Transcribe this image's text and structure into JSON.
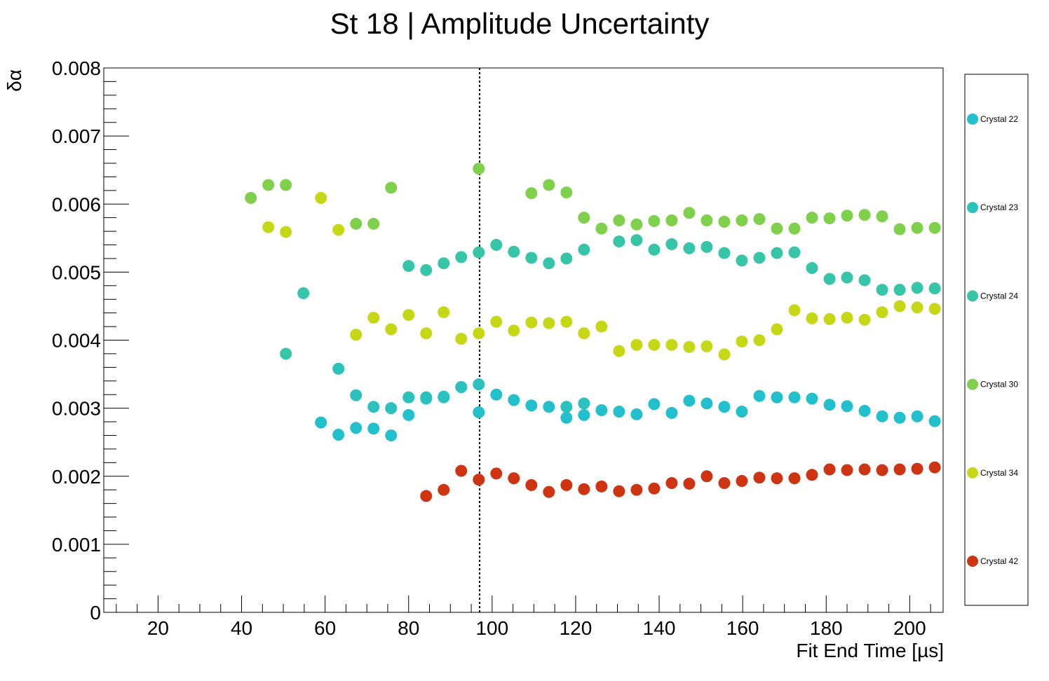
{
  "chart_data": {
    "type": "scatter",
    "title": "St 18 | Amplitude Uncertainty",
    "xlabel": "Fit End Time [µs]",
    "ylabel": "δα",
    "xlim": [
      7,
      208
    ],
    "ylim": [
      0,
      0.008
    ],
    "x_ticks": [
      "20",
      "40",
      "60",
      "80",
      "100",
      "120",
      "140",
      "160",
      "180",
      "200"
    ],
    "y_ticks": [
      "0",
      "0.001",
      "0.002",
      "0.003",
      "0.004",
      "0.005",
      "0.006",
      "0.007",
      "0.008"
    ],
    "grid": false,
    "legend_position": "right",
    "reference_line_x": 97,
    "series": [
      {
        "name": "Crystal 22",
        "color": "#22bfcc",
        "x": [
          59,
          63.2,
          67.4,
          71.6,
          75.8,
          80,
          84.2,
          88.4,
          92.6,
          96.8,
          101,
          105.2,
          109.4,
          113.6,
          117.8,
          122,
          126.2,
          130.4,
          134.6,
          138.8,
          143,
          147.2,
          151.4,
          155.6,
          159.8,
          164,
          168.2,
          172.4,
          176.6,
          180.8,
          185,
          189.2,
          193.4,
          197.6,
          201.8,
          206
        ],
        "y": [
          0.00279,
          0.00261,
          0.00271,
          0.0027,
          0.0026,
          0.0029,
          0.00316,
          0.00317,
          0.00331,
          0.00294,
          0.0032,
          0.00312,
          0.00304,
          0.00302,
          0.00286,
          0.0029,
          0.00297,
          0.00295,
          0.00291,
          0.00306,
          0.00293,
          0.00311,
          0.00307,
          0.00302,
          0.00295,
          0.00318,
          0.00316,
          0.00316,
          0.00314,
          0.00305,
          0.00303,
          0.00296,
          0.00288,
          0.00286,
          0.00288,
          0.00281
        ]
      },
      {
        "name": "Crystal 23",
        "color": "#2bc1bd",
        "x": [
          63.2,
          67.4,
          71.6,
          75.8,
          80,
          84.2,
          88.4,
          92.6,
          96.8,
          117.8,
          122
        ],
        "y": [
          0.00358,
          0.00319,
          0.00302,
          0.003,
          0.00316,
          0.00314,
          0.00316,
          0.00331,
          0.00335,
          0.00302,
          0.00307
        ]
      },
      {
        "name": "Crystal 24",
        "color": "#37c5a7",
        "x": [
          50.6,
          54.8,
          80,
          84.2,
          88.4,
          92.6,
          96.8,
          101,
          105.2,
          109.4,
          113.6,
          117.8,
          122,
          130.4,
          134.6,
          138.8,
          143,
          147.2,
          151.4,
          155.6,
          159.8,
          164,
          168.2,
          172.4,
          176.6,
          180.8,
          185,
          189.2,
          193.4,
          197.6,
          201.8,
          206
        ],
        "y": [
          0.0038,
          0.00469,
          0.00509,
          0.00503,
          0.00513,
          0.00522,
          0.00529,
          0.0054,
          0.0053,
          0.00521,
          0.00513,
          0.0052,
          0.00533,
          0.00545,
          0.00547,
          0.00533,
          0.00541,
          0.00535,
          0.00537,
          0.00528,
          0.00517,
          0.00521,
          0.00528,
          0.00529,
          0.00506,
          0.0049,
          0.00492,
          0.00488,
          0.00474,
          0.00474,
          0.00477,
          0.00476
        ]
      },
      {
        "name": "Crystal 30",
        "color": "#7fd04a",
        "x": [
          42.2,
          46.4,
          50.6,
          67.4,
          71.6,
          75.8,
          96.8,
          109.4,
          113.6,
          117.8,
          122,
          126.2,
          130.4,
          134.6,
          138.8,
          143,
          147.2,
          151.4,
          155.6,
          159.8,
          164,
          168.2,
          172.4,
          176.6,
          180.8,
          185,
          189.2,
          193.4,
          197.6,
          201.8,
          206
        ],
        "y": [
          0.00609,
          0.00628,
          0.00628,
          0.00571,
          0.00571,
          0.00624,
          0.00652,
          0.00616,
          0.00628,
          0.00617,
          0.0058,
          0.00564,
          0.00576,
          0.0057,
          0.00575,
          0.00576,
          0.00587,
          0.00576,
          0.00574,
          0.00576,
          0.00578,
          0.00564,
          0.00564,
          0.0058,
          0.00579,
          0.00583,
          0.00584,
          0.00582,
          0.00563,
          0.00565,
          0.00565
        ]
      },
      {
        "name": "Crystal 34",
        "color": "#c6d815",
        "x": [
          46.4,
          50.6,
          59,
          63.2,
          67.4,
          71.6,
          75.8,
          80,
          84.2,
          88.4,
          92.6,
          96.8,
          101,
          105.2,
          109.4,
          113.6,
          117.8,
          122,
          126.2,
          130.4,
          134.6,
          138.8,
          143,
          147.2,
          151.4,
          155.6,
          159.8,
          164,
          168.2,
          172.4,
          176.6,
          180.8,
          185,
          189.2,
          193.4,
          197.6,
          201.8,
          206
        ],
        "y": [
          0.00566,
          0.00559,
          0.00609,
          0.00562,
          0.00408,
          0.00433,
          0.00416,
          0.00437,
          0.0041,
          0.00441,
          0.00402,
          0.0041,
          0.00427,
          0.00414,
          0.00426,
          0.00425,
          0.00427,
          0.0041,
          0.0042,
          0.00384,
          0.00393,
          0.00393,
          0.00393,
          0.0039,
          0.00391,
          0.00379,
          0.00398,
          0.004,
          0.00416,
          0.00444,
          0.00432,
          0.00431,
          0.00433,
          0.0043,
          0.00441,
          0.0045,
          0.00448,
          0.00446
        ]
      },
      {
        "name": "Crystal 42",
        "color": "#cf3412",
        "x": [
          84.2,
          88.4,
          92.6,
          96.8,
          101,
          105.2,
          109.4,
          113.6,
          117.8,
          122,
          126.2,
          130.4,
          134.6,
          138.8,
          143,
          147.2,
          151.4,
          155.6,
          159.8,
          164,
          168.2,
          172.4,
          176.6,
          180.8,
          185,
          189.2,
          193.4,
          197.6,
          201.8,
          206
        ],
        "y": [
          0.00171,
          0.0018,
          0.00208,
          0.00195,
          0.00204,
          0.00197,
          0.00187,
          0.00177,
          0.00187,
          0.00181,
          0.00185,
          0.00178,
          0.0018,
          0.00182,
          0.0019,
          0.00189,
          0.002,
          0.0019,
          0.00193,
          0.00198,
          0.00197,
          0.00197,
          0.00202,
          0.0021,
          0.00209,
          0.0021,
          0.00209,
          0.0021,
          0.00211,
          0.00213
        ]
      }
    ]
  }
}
